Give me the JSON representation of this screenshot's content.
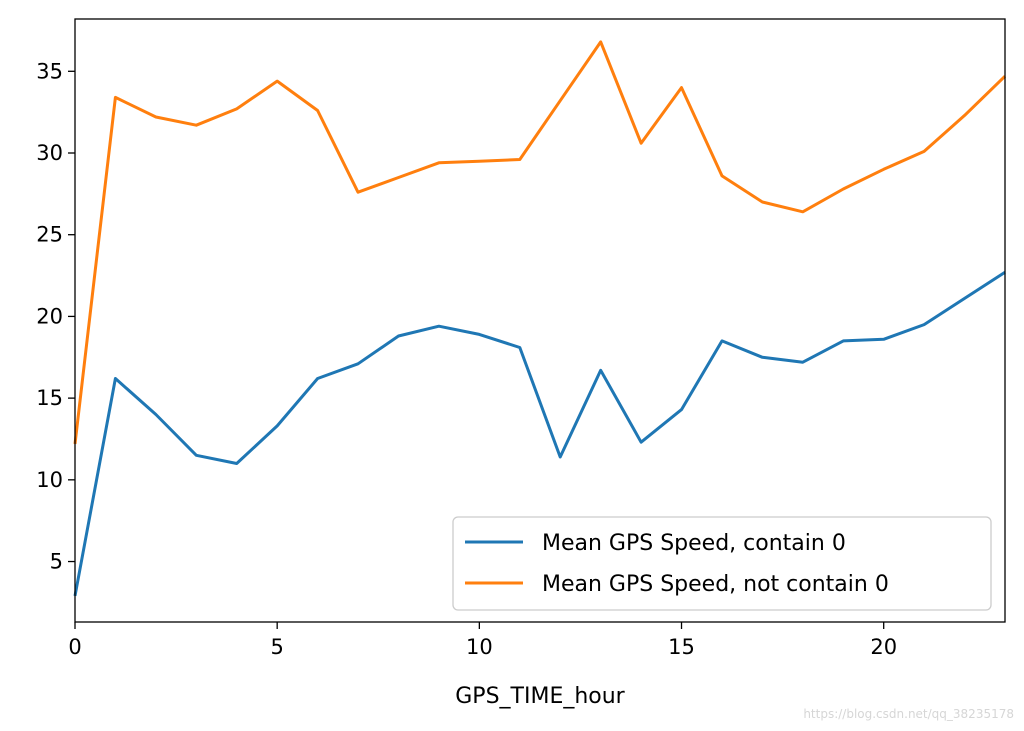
{
  "chart_data": {
    "type": "line",
    "xlabel": "GPS_TIME_hour",
    "ylabel": "",
    "xlim": [
      0,
      23
    ],
    "ylim": [
      1.3,
      38.2
    ],
    "xticks": [
      0,
      5,
      10,
      15,
      20
    ],
    "yticks": [
      5,
      10,
      15,
      20,
      25,
      30,
      35
    ],
    "grid": false,
    "legend_position": "lower-right",
    "x": [
      0,
      1,
      2,
      3,
      4,
      5,
      6,
      7,
      8,
      9,
      10,
      11,
      12,
      13,
      14,
      15,
      16,
      17,
      18,
      19,
      20,
      21,
      22,
      23
    ],
    "series": [
      {
        "name": "Mean GPS Speed, contain 0",
        "color": "#1f77b4",
        "values": [
          2.9,
          16.2,
          14.0,
          11.5,
          11.0,
          13.3,
          16.2,
          17.1,
          18.8,
          19.4,
          18.9,
          18.1,
          11.4,
          16.7,
          12.3,
          14.3,
          18.5,
          17.5,
          17.2,
          18.5,
          18.6,
          19.5,
          21.1,
          22.7
        ]
      },
      {
        "name": "Mean GPS Speed, not contain 0",
        "color": "#ff7f0e",
        "values": [
          12.2,
          33.4,
          32.2,
          31.7,
          32.7,
          34.4,
          32.6,
          27.6,
          28.5,
          29.4,
          29.5,
          29.6,
          33.2,
          36.8,
          30.6,
          34.0,
          28.6,
          27.0,
          26.4,
          27.8,
          29.0,
          30.1,
          32.3,
          34.7
        ]
      }
    ]
  },
  "watermark": "https://blog.csdn.net/qq_38235178"
}
